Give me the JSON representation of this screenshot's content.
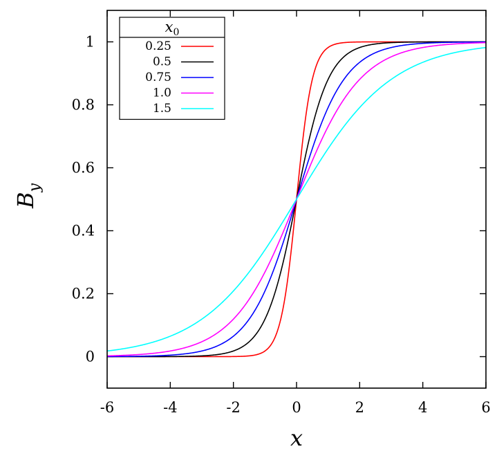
{
  "chart_data": {
    "type": "line",
    "title": "",
    "xlabel": "x",
    "ylabel_main": "B",
    "ylabel_sub": "y",
    "xlim": [
      -6,
      6
    ],
    "ylim": [
      -0.1,
      1.1
    ],
    "x_ticks": [
      -6,
      -4,
      -2,
      0,
      2,
      4,
      6
    ],
    "x_tick_labels": [
      "-6",
      "-4",
      "-2",
      "0",
      "2",
      "4",
      "6"
    ],
    "y_ticks": [
      0,
      0.2,
      0.4,
      0.6,
      0.8,
      1
    ],
    "y_tick_labels": [
      "0",
      "0.2",
      "0.4",
      "0.6",
      "0.8",
      "1"
    ],
    "grid": false,
    "legend": {
      "position": "top-left",
      "title_main": "x",
      "title_sub": "0"
    },
    "x": [
      -6,
      -5,
      -4,
      -3,
      -2,
      -1.5,
      -1,
      -0.75,
      -0.5,
      -0.25,
      0,
      0.25,
      0.5,
      0.75,
      1,
      1.5,
      2,
      3,
      4,
      5,
      6
    ],
    "series": [
      {
        "name": "0.25",
        "color": "#ff0000",
        "values": [
          0.0,
          0.0,
          0.0,
          0.0,
          0.0003,
          0.003,
          0.018,
          0.047,
          0.119,
          0.269,
          0.5,
          0.731,
          0.881,
          0.953,
          0.982,
          0.997,
          0.9997,
          1.0,
          1.0,
          1.0,
          1.0
        ]
      },
      {
        "name": "0.5",
        "color": "#000000",
        "values": [
          0.0,
          0.0,
          0.0003,
          0.0025,
          0.018,
          0.047,
          0.119,
          0.182,
          0.269,
          0.378,
          0.5,
          0.622,
          0.731,
          0.818,
          0.881,
          0.953,
          0.982,
          0.9975,
          0.9997,
          1.0,
          1.0
        ]
      },
      {
        "name": "0.75",
        "color": "#0000ff",
        "values": [
          0.0003,
          0.0013,
          0.0048,
          0.018,
          0.065,
          0.119,
          0.209,
          0.269,
          0.339,
          0.417,
          0.5,
          0.583,
          0.661,
          0.731,
          0.791,
          0.881,
          0.935,
          0.982,
          0.9952,
          0.9987,
          0.9997
        ]
      },
      {
        "name": "1.0",
        "color": "#ff00ff",
        "values": [
          0.0025,
          0.0067,
          0.018,
          0.047,
          0.119,
          0.182,
          0.269,
          0.321,
          0.378,
          0.438,
          0.5,
          0.562,
          0.622,
          0.679,
          0.731,
          0.818,
          0.881,
          0.953,
          0.982,
          0.9933,
          0.9975
        ]
      },
      {
        "name": "1.5",
        "color": "#00ffff",
        "values": [
          0.018,
          0.034,
          0.065,
          0.119,
          0.209,
          0.269,
          0.339,
          0.378,
          0.417,
          0.458,
          0.5,
          0.542,
          0.583,
          0.622,
          0.661,
          0.731,
          0.791,
          0.881,
          0.935,
          0.966,
          0.982
        ]
      }
    ]
  }
}
